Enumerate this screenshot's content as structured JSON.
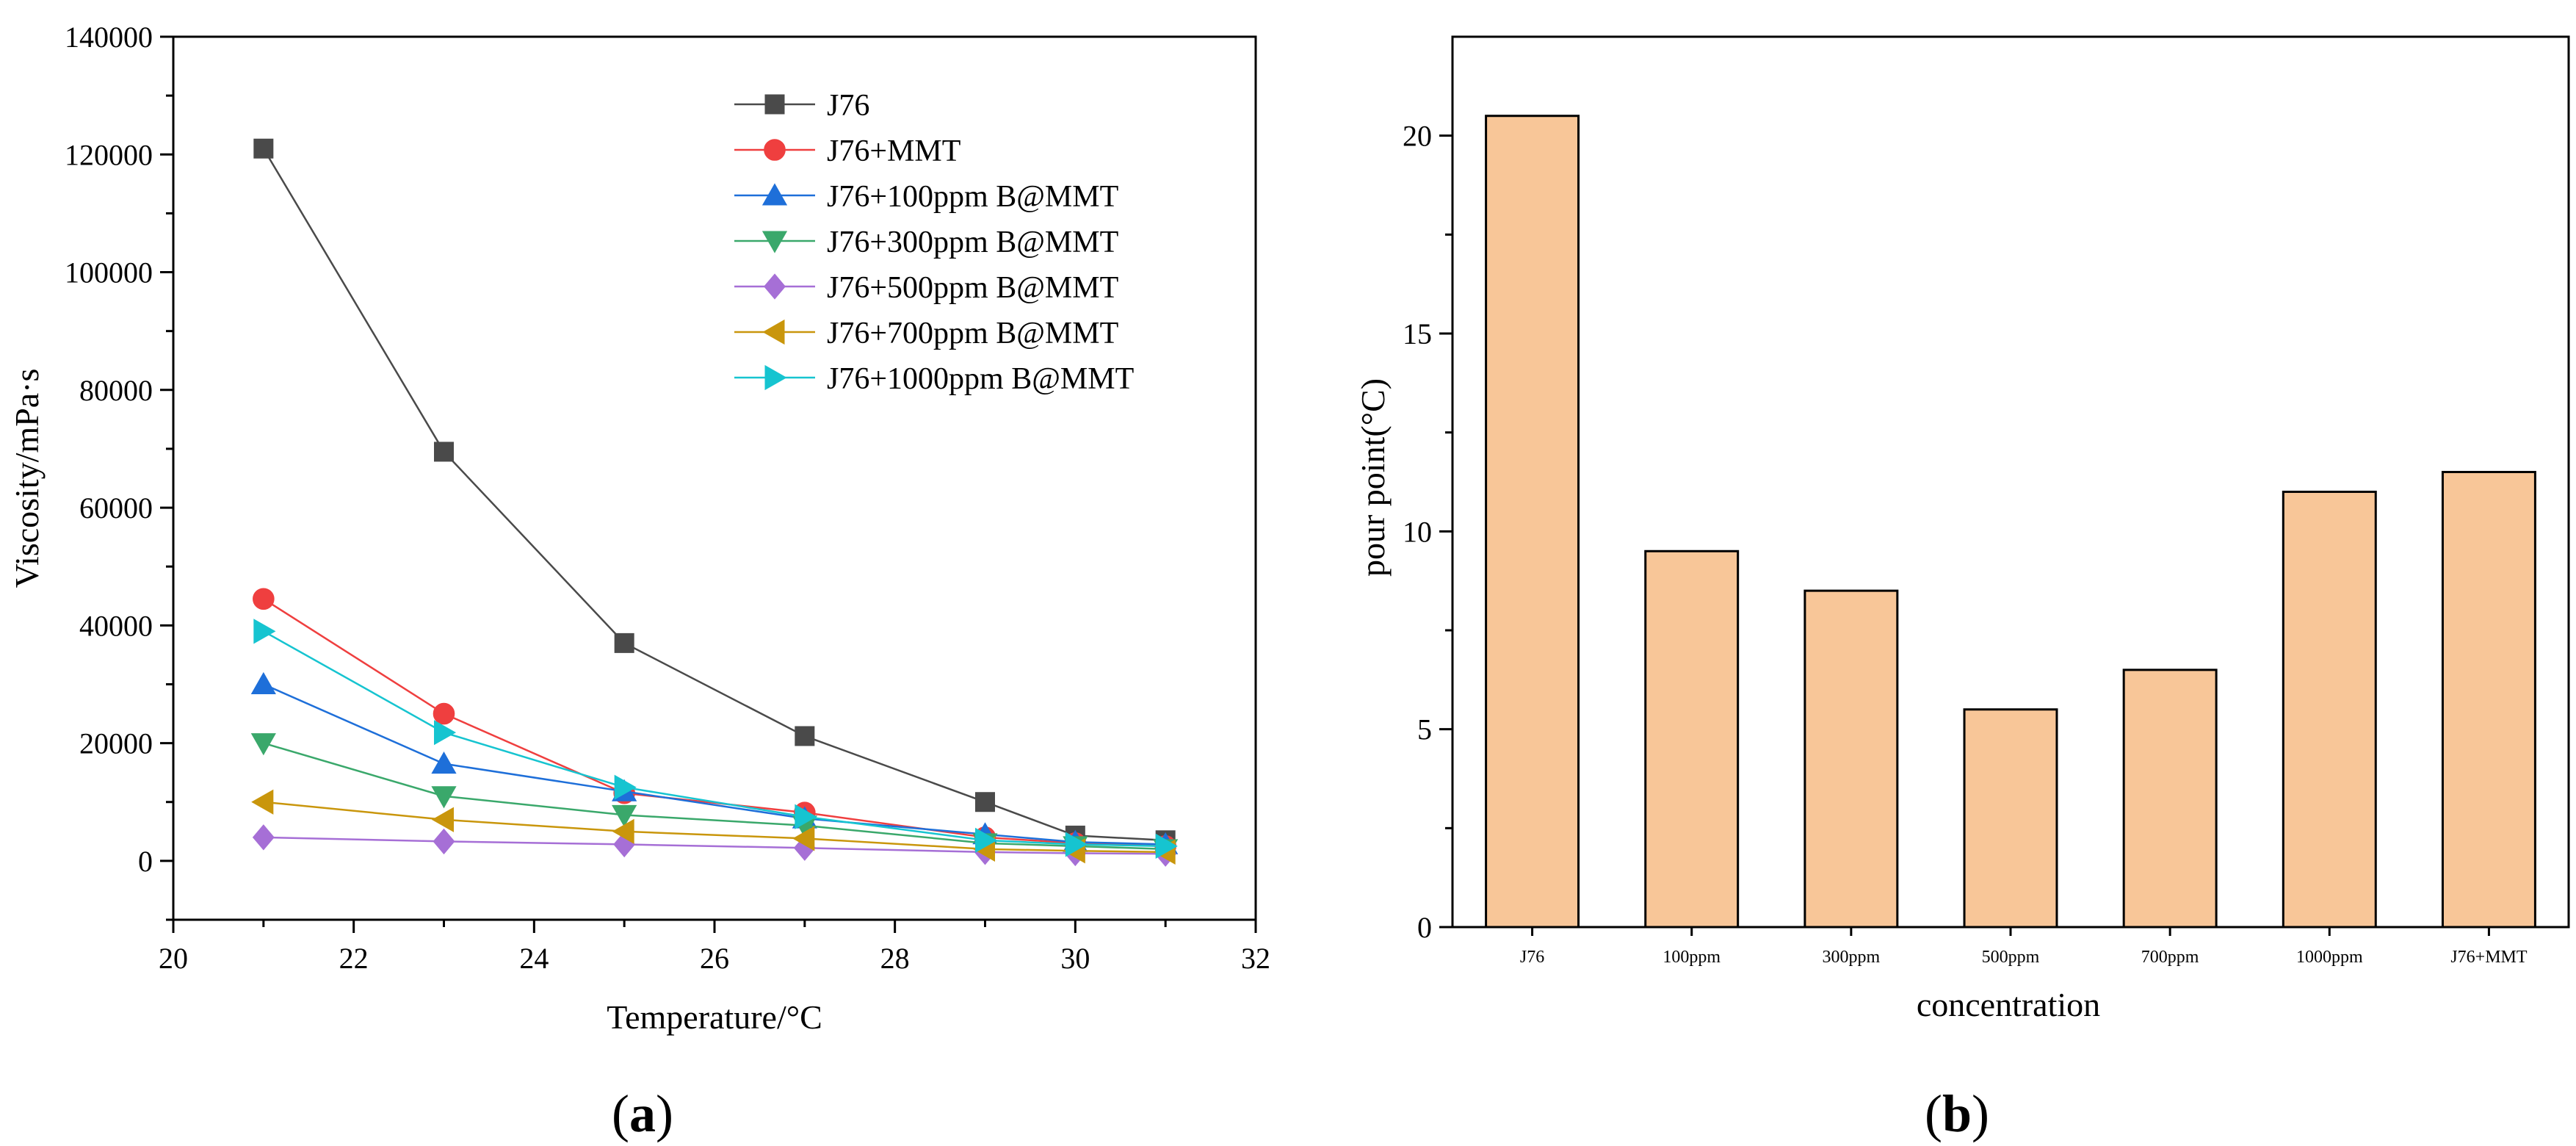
{
  "panels": {
    "a": {
      "label_open": "(",
      "label_letter": "a",
      "label_close": ")"
    },
    "b": {
      "label_open": "(",
      "label_letter": "b",
      "label_close": ")"
    }
  },
  "chart_data": [
    {
      "type": "line",
      "panel": "a",
      "title": "",
      "xlabel": "Temperature/°C",
      "ylabel": "Viscosity/mPa·s",
      "xlim": [
        20,
        32
      ],
      "ylim": [
        -10000,
        140000
      ],
      "xticks": [
        20,
        22,
        24,
        26,
        28,
        30,
        32
      ],
      "yticks": [
        0,
        20000,
        40000,
        60000,
        80000,
        100000,
        120000,
        140000
      ],
      "grid": false,
      "legend_position": "top-right",
      "x": [
        21,
        23,
        25,
        27,
        29,
        30,
        31
      ],
      "series": [
        {
          "name": "J76",
          "marker": "square",
          "color": "#4a4a4a",
          "values": [
            121000,
            69500,
            37000,
            21200,
            10000,
            4300,
            3500
          ]
        },
        {
          "name": "J76+MMT",
          "marker": "circle",
          "color": "#ef3f3f",
          "values": [
            44500,
            25000,
            11500,
            8200,
            4000,
            3000,
            2500
          ]
        },
        {
          "name": "J76+100ppm B@MMT",
          "marker": "triangle-up",
          "color": "#1e6fd9",
          "values": [
            30000,
            16500,
            11800,
            7200,
            4500,
            3200,
            2800
          ]
        },
        {
          "name": "J76+300ppm B@MMT",
          "marker": "triangle-down",
          "color": "#3aa86b",
          "values": [
            20000,
            11000,
            7800,
            6000,
            3000,
            2500,
            2000
          ]
        },
        {
          "name": "J76+500ppm B@MMT",
          "marker": "diamond",
          "color": "#a66fd6",
          "values": [
            4000,
            3300,
            2800,
            2200,
            1500,
            1300,
            1200
          ]
        },
        {
          "name": "J76+700ppm B@MMT",
          "marker": "triangle-left",
          "color": "#c9960c",
          "values": [
            10000,
            7000,
            5000,
            3800,
            2000,
            1700,
            1500
          ]
        },
        {
          "name": "J76+1000ppm B@MMT",
          "marker": "triangle-right",
          "color": "#16c4d0",
          "values": [
            39000,
            21800,
            12500,
            7500,
            3500,
            2800,
            2500
          ]
        }
      ]
    },
    {
      "type": "bar",
      "panel": "b",
      "title": "",
      "xlabel": "concentration",
      "ylabel": "pour point(°C)",
      "categories": [
        "J76",
        "100ppm",
        "300ppm",
        "500ppm",
        "700ppm",
        "1000ppm",
        "J76+MMT"
      ],
      "values": [
        20.5,
        9.5,
        8.5,
        5.5,
        6.5,
        11,
        11.5
      ],
      "ylim": [
        0,
        22.5
      ],
      "yticks": [
        0,
        5,
        10,
        15,
        20
      ],
      "bar_color": "#f8c698",
      "grid": false
    }
  ]
}
